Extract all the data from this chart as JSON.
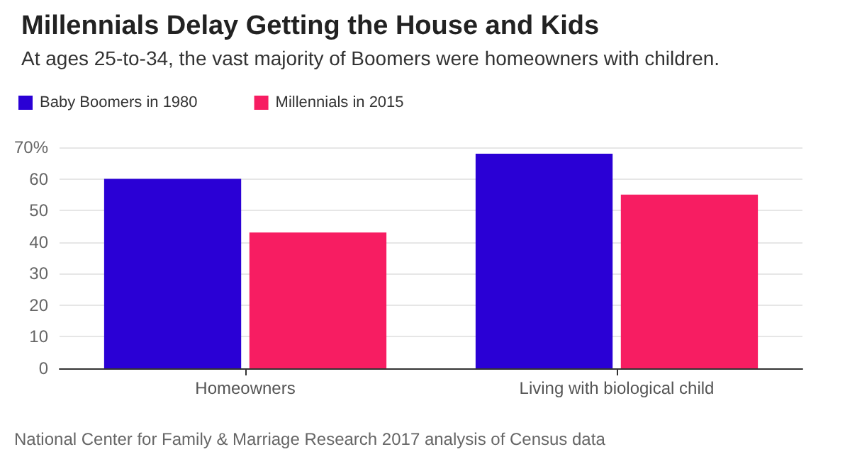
{
  "chart_data": {
    "type": "bar",
    "title": "Millennials Delay Getting the House and Kids",
    "subtitle": "At ages 25-to-34, the vast majority of Boomers were homeowners with children.",
    "categories": [
      "Homeowners",
      "Living with biological child"
    ],
    "series": [
      {
        "name": "Baby Boomers in 1980",
        "color": "#2a00d5",
        "values": [
          60,
          68
        ]
      },
      {
        "name": "Millennials in 2015",
        "color": "#f71d62",
        "values": [
          43,
          55
        ]
      }
    ],
    "ylim": [
      0,
      70
    ],
    "yticks": [
      0,
      10,
      20,
      30,
      40,
      50,
      60,
      {
        "value": 70,
        "label": "70%"
      }
    ],
    "grid": "y",
    "legend": "top left",
    "annotations": [
      "National Center for Family & Marriage Research 2017 analysis of Census data"
    ]
  }
}
